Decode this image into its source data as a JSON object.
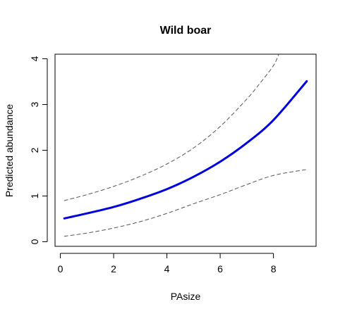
{
  "chart_data": {
    "type": "line",
    "title": "Wild boar",
    "xlabel": "PAsize",
    "ylabel": "Predicted abundance",
    "xlim": [
      -0.2,
      9.6
    ],
    "ylim": [
      -0.1,
      4.1
    ],
    "x_ticks": [
      "0",
      "2",
      "4",
      "6",
      "8"
    ],
    "y_ticks": [
      "0",
      "1",
      "2",
      "3",
      "4"
    ],
    "grid": false,
    "series": [
      {
        "role": "fit",
        "color": "#0000dd",
        "style": "solid",
        "x": [
          0.15,
          1.0,
          2.0,
          3.0,
          4.0,
          5.0,
          6.0,
          7.0,
          8.0,
          9.25
        ],
        "y": [
          0.51,
          0.62,
          0.76,
          0.94,
          1.15,
          1.42,
          1.75,
          2.16,
          2.66,
          3.51
        ]
      },
      {
        "role": "upper bound",
        "color": "#555555",
        "style": "dashed",
        "x": [
          0.15,
          1.0,
          2.0,
          3.0,
          4.0,
          5.0,
          6.0,
          7.0,
          7.5,
          8.0,
          8.2
        ],
        "y": [
          0.9,
          1.03,
          1.21,
          1.43,
          1.7,
          2.05,
          2.52,
          3.12,
          3.47,
          3.85,
          4.1
        ]
      },
      {
        "role": "lower bound",
        "color": "#555555",
        "style": "dashed",
        "x": [
          0.15,
          1.0,
          2.0,
          3.0,
          4.0,
          5.0,
          6.0,
          7.0,
          8.0,
          9.25
        ],
        "y": [
          0.12,
          0.19,
          0.3,
          0.44,
          0.62,
          0.83,
          1.03,
          1.25,
          1.45,
          1.58
        ]
      }
    ]
  }
}
